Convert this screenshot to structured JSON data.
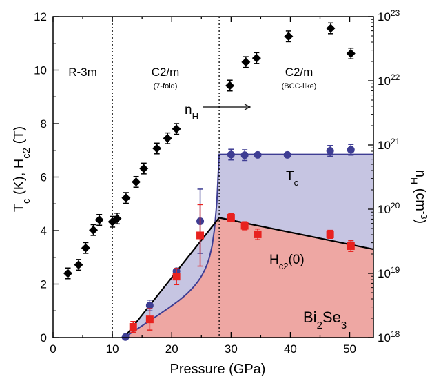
{
  "chart_data": {
    "type": "scatter",
    "xlabel": "Pressure (GPa)",
    "ylabel_left": {
      "base": "T",
      "sub1": "c",
      "mid": " (K), H",
      "sub2": "c2",
      "end": " (T)"
    },
    "ylabel_right": {
      "base": "n",
      "sub": "H",
      "mid": " (cm",
      "sup": "-3",
      "end": ")"
    },
    "xlim": [
      0,
      54
    ],
    "ylim_left": [
      0,
      12
    ],
    "ylim_right_log10": [
      18,
      23
    ],
    "x_ticks": [
      0,
      10,
      20,
      30,
      40,
      50
    ],
    "y_ticks_left": [
      0,
      2,
      4,
      6,
      8,
      10,
      12
    ],
    "y_ticks_right": [
      {
        "base": "10",
        "exp": "18",
        "value": 18
      },
      {
        "base": "10",
        "exp": "19",
        "value": 19
      },
      {
        "base": "10",
        "exp": "20",
        "value": 20
      },
      {
        "base": "10",
        "exp": "21",
        "value": 21
      },
      {
        "base": "10",
        "exp": "22",
        "value": 22
      },
      {
        "base": "10",
        "exp": "23",
        "value": 23
      }
    ],
    "phase_boundaries": [
      10,
      28
    ],
    "phases": [
      {
        "label": "R-3m",
        "sub": "",
        "x": 5
      },
      {
        "label": "C2/m",
        "sub": "(7-fold)",
        "x": 19
      },
      {
        "label": "C2/m",
        "sub": "(BCC-like)",
        "x": 41
      }
    ],
    "labels": {
      "nH": {
        "base": "n",
        "sub": "H"
      },
      "Tc": {
        "base": "T",
        "sub": "c"
      },
      "Hc2": {
        "base": "H",
        "sub": "c2",
        "end": "(0)"
      },
      "material": {
        "a": "Bi",
        "s1": "2",
        "b": "Se",
        "s2": "3"
      }
    },
    "colors": {
      "nH": "#000000",
      "Tc": "#3e3d93",
      "Hc2": "#e8221f",
      "Tc_fill": "#c6c5e2",
      "Hc2_fill": "#eea7a3"
    },
    "series": [
      {
        "key": "nH",
        "axis": "right",
        "marker": "diamond",
        "points": [
          {
            "x": 2.5,
            "y": 2.4,
            "err": 0.2
          },
          {
            "x": 4.3,
            "y": 2.72,
            "err": 0.2
          },
          {
            "x": 5.5,
            "y": 3.35,
            "err": 0.2
          },
          {
            "x": 6.8,
            "y": 4.02,
            "err": 0.2
          },
          {
            "x": 7.8,
            "y": 4.4,
            "err": 0.2
          },
          {
            "x": 10.0,
            "y": 4.33,
            "err": 0.2
          },
          {
            "x": 10.8,
            "y": 4.45,
            "err": 0.2
          },
          {
            "x": 12.3,
            "y": 5.22,
            "err": 0.2
          },
          {
            "x": 14.0,
            "y": 5.82,
            "err": 0.2
          },
          {
            "x": 15.3,
            "y": 6.32,
            "err": 0.2
          },
          {
            "x": 17.5,
            "y": 7.07,
            "err": 0.2
          },
          {
            "x": 19.3,
            "y": 7.45,
            "err": 0.2
          },
          {
            "x": 20.8,
            "y": 7.8,
            "err": 0.2
          },
          {
            "x": 29.8,
            "y": 9.42,
            "err": 0.2
          },
          {
            "x": 32.5,
            "y": 10.3,
            "err": 0.2
          },
          {
            "x": 34.3,
            "y": 10.45,
            "err": 0.2
          },
          {
            "x": 39.7,
            "y": 11.26,
            "err": 0.2
          },
          {
            "x": 46.8,
            "y": 11.56,
            "err": 0.2
          },
          {
            "x": 50.2,
            "y": 10.62,
            "err": 0.2
          }
        ]
      },
      {
        "key": "Tc",
        "axis": "left",
        "marker": "circle",
        "points": [
          {
            "x": 12.2,
            "y": 0.02,
            "err": 0
          },
          {
            "x": 16.3,
            "y": 1.2,
            "err": 0.2
          },
          {
            "x": 20.8,
            "y": 2.48,
            "err": 0
          },
          {
            "x": 24.8,
            "y": 4.35,
            "err": 1.2
          },
          {
            "x": 30.0,
            "y": 6.84,
            "err": 0.2
          },
          {
            "x": 32.3,
            "y": 6.82,
            "err": 0.2
          },
          {
            "x": 34.5,
            "y": 6.83,
            "err": 0
          },
          {
            "x": 39.5,
            "y": 6.83,
            "err": 0
          },
          {
            "x": 46.7,
            "y": 6.98,
            "err": 0.2
          },
          {
            "x": 50.2,
            "y": 7.02,
            "err": 0.2
          }
        ]
      },
      {
        "key": "Hc2",
        "axis": "left",
        "marker": "square",
        "points": [
          {
            "x": 13.5,
            "y": 0.4,
            "err": 0.2
          },
          {
            "x": 16.3,
            "y": 0.68,
            "err": 0.4
          },
          {
            "x": 20.8,
            "y": 2.28,
            "err": 0.3
          },
          {
            "x": 24.8,
            "y": 3.82,
            "err": 1.15
          },
          {
            "x": 30.0,
            "y": 4.48,
            "err": 0.15
          },
          {
            "x": 32.3,
            "y": 4.18,
            "err": 0.15
          },
          {
            "x": 34.5,
            "y": 3.86,
            "err": 0.2
          },
          {
            "x": 46.7,
            "y": 3.86,
            "err": 0.15
          },
          {
            "x": 50.2,
            "y": 3.42,
            "err": 0.2
          }
        ]
      }
    ],
    "fit_lines": {
      "Hc2": [
        [
          12,
          0
        ],
        [
          28,
          4.48
        ],
        [
          54,
          3.3
        ]
      ],
      "Tc": {
        "onset": 12,
        "jump": [
          28,
          6.85
        ],
        "end": [
          54,
          6.85
        ]
      }
    }
  }
}
